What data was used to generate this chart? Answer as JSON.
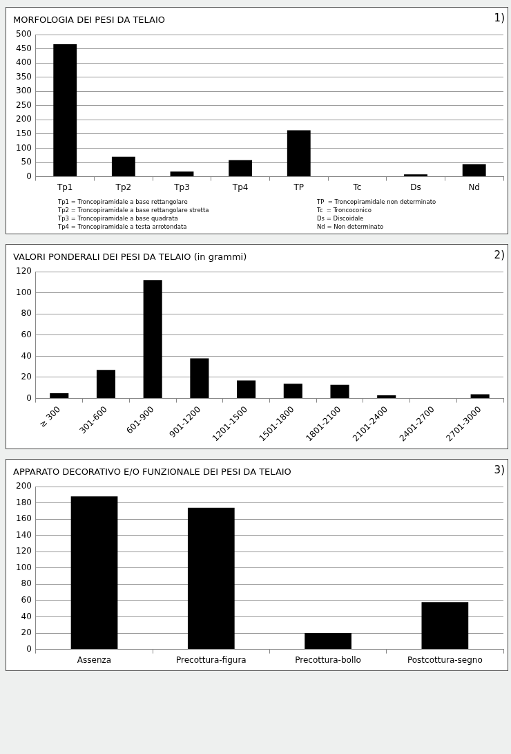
{
  "chart_data": [
    {
      "type": "bar",
      "title": "MORFOLOGIA DEI PESI DA TELAIO",
      "categories": [
        "Tp1",
        "Tp2",
        "Tp3",
        "Tp4",
        "TP",
        "Tc",
        "Ds",
        "Nd"
      ],
      "values": [
        466,
        70,
        18,
        58,
        163,
        0,
        8,
        44
      ],
      "color": "#000000",
      "ylim": [
        0,
        500
      ],
      "yticks": [
        0,
        50,
        100,
        150,
        200,
        250,
        300,
        350,
        400,
        450,
        500
      ],
      "grid": "y",
      "legend": false,
      "annotations": [
        "1)",
        "Tp1 = Troncopiramidale a base rettangolare",
        "Tp2 = Troncopiramidale a base rettangolare stretta",
        "Tp3 = Troncopiramidale a base quadrata",
        "Tp4 = Troncopiramidale a testa arrotondata",
        "TP  = Troncopiramidale non determinato",
        "Tc  = Troncoconico",
        "Ds = Discoidale",
        "Nd = Non determinato"
      ]
    },
    {
      "type": "bar",
      "title": "VALORI PONDERALI DEI PESI DA TELAIO (in grammi)",
      "categories": [
        "≥ 300",
        "301-600",
        "601-900",
        "901-1200",
        "1201-1500",
        "1501-1800",
        "1801-2100",
        "2101-2400",
        "2401-2700",
        "2701-3000"
      ],
      "values": [
        5,
        27,
        112,
        38,
        17,
        14,
        13,
        3,
        0,
        4
      ],
      "color": "#000000",
      "ylim": [
        0,
        120
      ],
      "yticks": [
        0,
        20,
        40,
        60,
        80,
        100,
        120
      ],
      "grid": "y",
      "legend": false,
      "annotations": [
        "2)"
      ]
    },
    {
      "type": "bar",
      "title": "APPARATO DECORATIVO E/O FUNZIONALE DEI PESI DA TELAIO",
      "categories": [
        "Assenza",
        "Precottura-figura",
        "Precottura-bollo",
        "Postcottura-segno"
      ],
      "values": [
        188,
        174,
        20,
        58
      ],
      "color": "#000000",
      "ylim": [
        0,
        200
      ],
      "yticks": [
        0,
        20,
        40,
        60,
        80,
        100,
        120,
        140,
        160,
        180,
        200
      ],
      "grid": "y",
      "legend": false,
      "annotations": [
        "3)"
      ]
    }
  ]
}
